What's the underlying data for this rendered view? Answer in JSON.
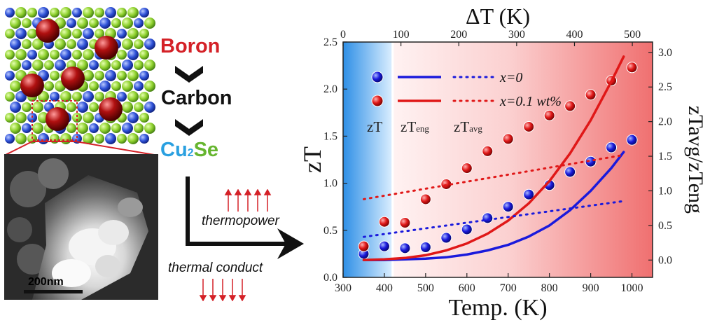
{
  "schematic": {
    "labels": {
      "boron": "Boron",
      "carbon": "Carbon",
      "matrix_prefix": "Cu",
      "matrix_sub": "2",
      "matrix_suffix": "Se",
      "scale_bar": "200nm",
      "thermopower": "thermopower",
      "thermal_conduct": "thermal conduct"
    },
    "colors": {
      "boron": "#d42127",
      "carbon": "#111111",
      "cu2": "#2aa0e0",
      "se": "#66b52f",
      "arrow_red": "#d42127"
    }
  },
  "chart_data": {
    "type": "scatter",
    "x_bottom_label": "Temp. (K)",
    "x_top_label": "ΔT (K)",
    "y_left_label": "zT",
    "y_right_label": "zTavg/zTeng",
    "xlim": [
      300,
      1050
    ],
    "x_top_lim": [
      0,
      535
    ],
    "ylim_left": [
      0.0,
      2.5
    ],
    "ylim_right": [
      -0.25,
      3.15
    ],
    "x_ticks": [
      300,
      400,
      500,
      600,
      700,
      800,
      900,
      1000
    ],
    "x_top_ticks": [
      0,
      100,
      200,
      300,
      400,
      500
    ],
    "y_left_ticks": [
      "0.0",
      "0.5",
      "1.0",
      "1.5",
      "2.0",
      "2.5"
    ],
    "y_left_tick_values": [
      0.0,
      0.5,
      1.0,
      1.5,
      2.0,
      2.5
    ],
    "y_right_ticks": [
      "0.0",
      "0.5",
      "1.0",
      "1.5",
      "2.0",
      "2.5",
      "3.0"
    ],
    "y_right_tick_values": [
      0.0,
      0.5,
      1.0,
      1.5,
      2.0,
      2.5,
      3.0
    ],
    "regions": {
      "zT_end_temp": 420,
      "zT_label": "zT",
      "zTeng_label": "zT",
      "zTeng_sub": "eng",
      "zTavg_label": "zT",
      "zTavg_sub": "avg"
    },
    "legend": {
      "entries": [
        {
          "name": "x=0",
          "color": "#1a1adc"
        },
        {
          "name": "x=0.1 wt%",
          "color": "#e01818"
        }
      ]
    },
    "series": [
      {
        "name": "zT x=0",
        "kind": "points",
        "color": "#1a1adc",
        "x": [
          350,
          400,
          450,
          500,
          550,
          600,
          650,
          700,
          750,
          800,
          850,
          900,
          950,
          1000
        ],
        "y": [
          0.25,
          0.33,
          0.31,
          0.32,
          0.42,
          0.51,
          0.63,
          0.75,
          0.88,
          0.98,
          1.12,
          1.23,
          1.38,
          1.46
        ]
      },
      {
        "name": "zT x=0.1 wt%",
        "kind": "points",
        "color": "#e01818",
        "x": [
          350,
          400,
          450,
          500,
          550,
          600,
          650,
          700,
          750,
          800,
          850,
          900,
          950,
          1000
        ],
        "y": [
          0.33,
          0.59,
          0.58,
          0.83,
          0.99,
          1.16,
          1.34,
          1.47,
          1.6,
          1.72,
          1.82,
          1.94,
          2.09,
          2.23
        ]
      },
      {
        "name": "zTeng x=0",
        "kind": "solid",
        "axis": "right",
        "color": "#1a1adc",
        "x": [
          350,
          400,
          450,
          500,
          550,
          600,
          650,
          700,
          750,
          800,
          850,
          900,
          950,
          980
        ],
        "y": [
          0.0,
          0.0,
          0.01,
          0.02,
          0.04,
          0.08,
          0.14,
          0.22,
          0.34,
          0.5,
          0.72,
          1.0,
          1.33,
          1.56
        ]
      },
      {
        "name": "zTeng x=0.1 wt%",
        "kind": "solid",
        "axis": "right",
        "color": "#e01818",
        "x": [
          350,
          400,
          450,
          500,
          550,
          600,
          650,
          700,
          750,
          800,
          850,
          900,
          950,
          980
        ],
        "y": [
          0.0,
          0.01,
          0.03,
          0.07,
          0.14,
          0.24,
          0.38,
          0.57,
          0.82,
          1.14,
          1.54,
          2.02,
          2.58,
          2.94
        ]
      },
      {
        "name": "zTavg x=0",
        "kind": "dotted",
        "axis": "left",
        "color": "#1a1adc",
        "x": [
          350,
          980
        ],
        "y": [
          0.43,
          0.81
        ]
      },
      {
        "name": "zTavg x=0.1 wt%",
        "kind": "dotted",
        "axis": "left",
        "color": "#e01818",
        "x": [
          350,
          980
        ],
        "y": [
          0.83,
          1.3
        ]
      }
    ]
  }
}
